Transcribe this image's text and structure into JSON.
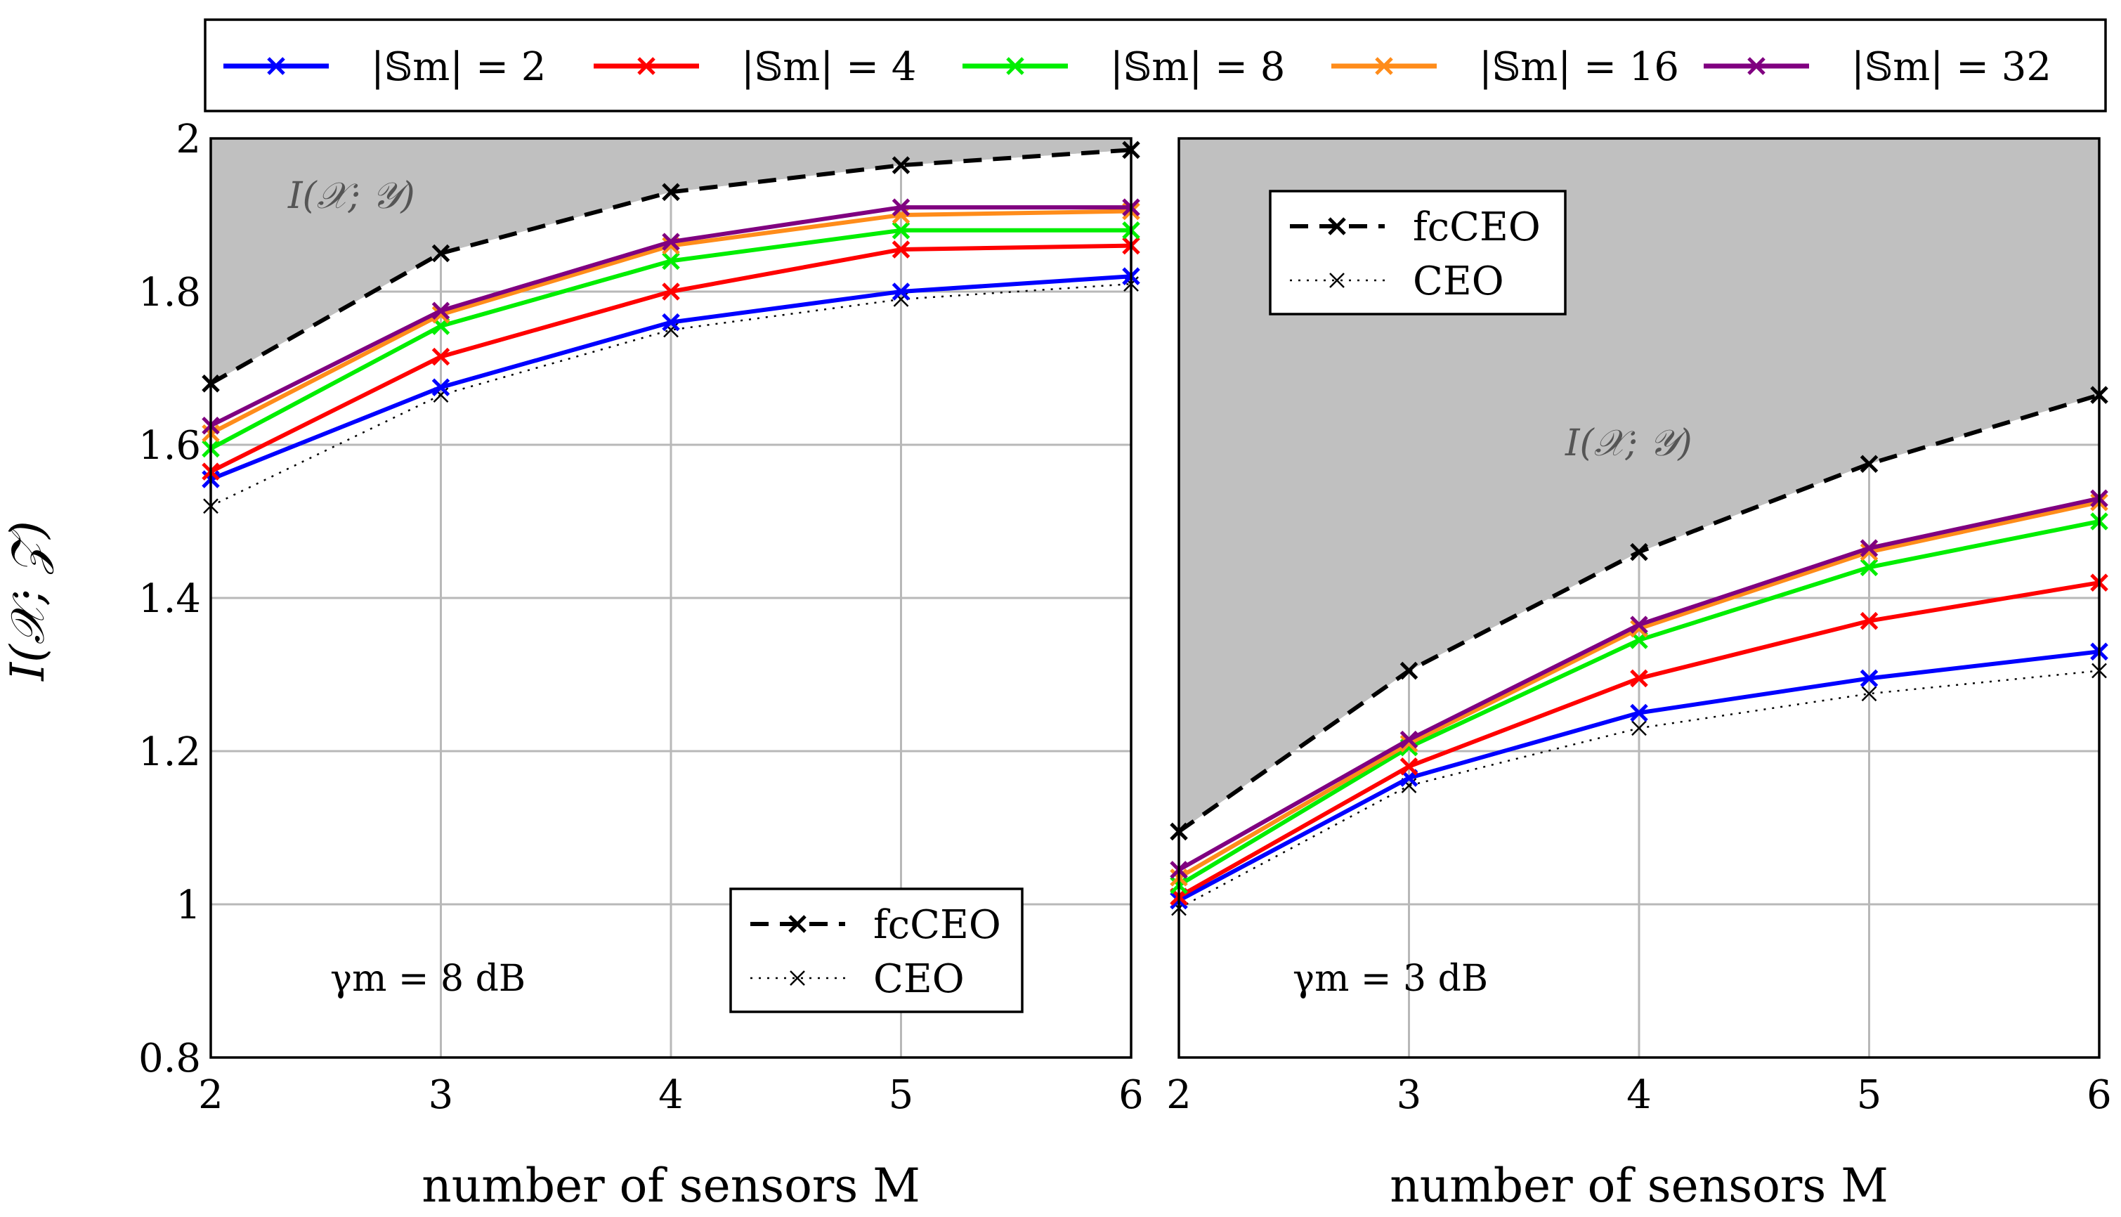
{
  "legend": {
    "entries": [
      {
        "label": "|𝕊m| = 2",
        "color": "#0000ff"
      },
      {
        "label": "|𝕊m| = 4",
        "color": "#ff0000"
      },
      {
        "label": "|𝕊m| = 8",
        "color": "#00ee00"
      },
      {
        "label": "|𝕊m| = 16",
        "color": "#ff8c1a"
      },
      {
        "label": "|𝕊m| = 32",
        "color": "#800080"
      }
    ]
  },
  "chart_data": [
    {
      "type": "line",
      "xlabel": "number of sensors M",
      "ylabel": "I(𝒳; 𝒵)",
      "x": [
        2,
        3,
        4,
        5,
        6
      ],
      "xlim": [
        2,
        6
      ],
      "ylim": [
        0.8,
        2
      ],
      "yticks": [
        "0.8",
        "1",
        "1.2",
        "1.4",
        "1.6",
        "1.8",
        "2"
      ],
      "xticks": [
        "2",
        "3",
        "4",
        "5",
        "6"
      ],
      "annotation": "γm = 8 dB",
      "region_label": "I(𝒳; 𝒴)",
      "inner_legend": [
        "fcCEO",
        "CEO"
      ],
      "inner_legend_position": "bottom-right",
      "series": [
        {
          "name": "fcCEO",
          "values": [
            1.68,
            1.85,
            1.93,
            1.965,
            1.985
          ],
          "style": "dashed"
        },
        {
          "name": "CEO",
          "values": [
            1.52,
            1.665,
            1.75,
            1.79,
            1.81
          ],
          "style": "dotted"
        },
        {
          "name": "|𝕊m| = 2",
          "values": [
            1.555,
            1.675,
            1.76,
            1.8,
            1.82
          ]
        },
        {
          "name": "|𝕊m| = 4",
          "values": [
            1.565,
            1.715,
            1.8,
            1.855,
            1.86
          ]
        },
        {
          "name": "|𝕊m| = 8",
          "values": [
            1.595,
            1.755,
            1.84,
            1.88,
            1.88
          ]
        },
        {
          "name": "|𝕊m| = 16",
          "values": [
            1.615,
            1.77,
            1.86,
            1.9,
            1.905
          ]
        },
        {
          "name": "|𝕊m| = 32",
          "values": [
            1.625,
            1.775,
            1.865,
            1.91,
            1.91
          ]
        }
      ],
      "region_upper": [
        1.985,
        1.985,
        1.985,
        1.985,
        1.985
      ]
    },
    {
      "type": "line",
      "xlabel": "number of sensors M",
      "x": [
        2,
        3,
        4,
        5,
        6
      ],
      "xlim": [
        2,
        6
      ],
      "ylim": [
        0.8,
        2
      ],
      "xticks": [
        "2",
        "3",
        "4",
        "5",
        "6"
      ],
      "annotation": "γm = 3 dB",
      "region_label": "I(𝒳; 𝒴)",
      "inner_legend": [
        "fcCEO",
        "CEO"
      ],
      "inner_legend_position": "top-left",
      "series": [
        {
          "name": "fcCEO",
          "values": [
            1.095,
            1.305,
            1.46,
            1.575,
            1.665
          ],
          "style": "dashed"
        },
        {
          "name": "CEO",
          "values": [
            0.995,
            1.155,
            1.23,
            1.275,
            1.305
          ],
          "style": "dotted"
        },
        {
          "name": "|𝕊m| = 2",
          "values": [
            1.005,
            1.165,
            1.25,
            1.295,
            1.33
          ]
        },
        {
          "name": "|𝕊m| = 4",
          "values": [
            1.01,
            1.18,
            1.295,
            1.37,
            1.42
          ]
        },
        {
          "name": "|𝕊m| = 8",
          "values": [
            1.025,
            1.205,
            1.345,
            1.44,
            1.5
          ]
        },
        {
          "name": "|𝕊m| = 16",
          "values": [
            1.035,
            1.21,
            1.36,
            1.46,
            1.525
          ]
        },
        {
          "name": "|𝕊m| = 32",
          "values": [
            1.045,
            1.215,
            1.365,
            1.465,
            1.53
          ]
        }
      ]
    }
  ]
}
